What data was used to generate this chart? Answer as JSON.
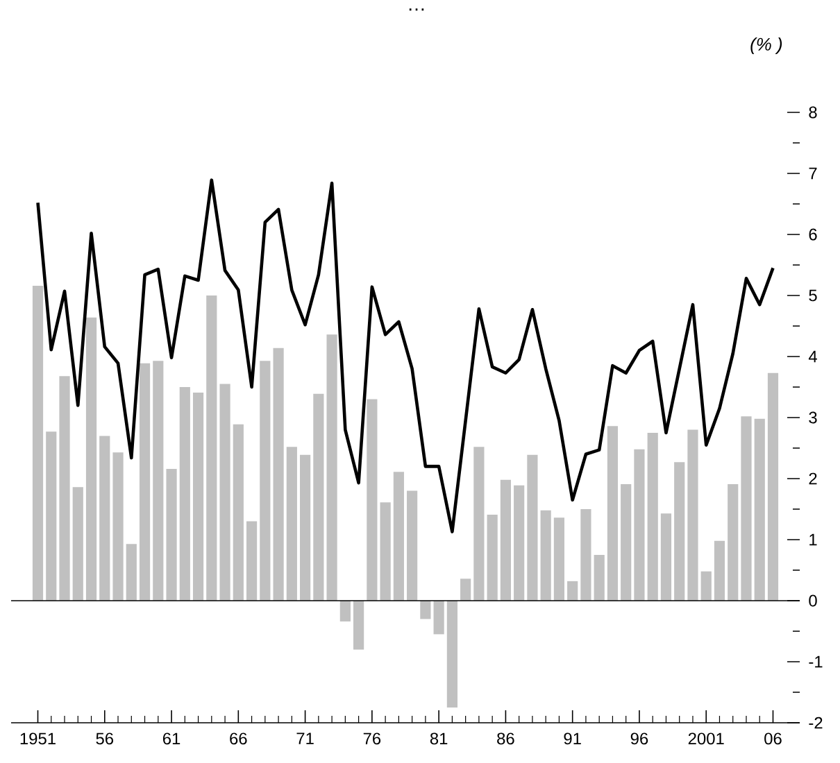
{
  "chart_data": {
    "type": "bar",
    "title": "…",
    "annotations": [
      "(%        )"
    ],
    "categories": [
      "1951",
      null,
      null,
      null,
      null,
      "56",
      null,
      null,
      null,
      null,
      "61",
      null,
      null,
      null,
      null,
      "66",
      null,
      null,
      null,
      null,
      "71",
      null,
      null,
      null,
      null,
      "76",
      null,
      null,
      null,
      null,
      "81",
      null,
      null,
      null,
      null,
      "86",
      null,
      null,
      null,
      null,
      "91",
      null,
      null,
      null,
      null,
      "96",
      null,
      null,
      null,
      null,
      "2001",
      null,
      null,
      null,
      null,
      "06"
    ],
    "series": [
      {
        "color": "#c0c0c0",
        "values": [
          5.16,
          2.77,
          3.68,
          1.86,
          4.64,
          2.7,
          2.43,
          0.93,
          3.89,
          3.93,
          2.16,
          3.5,
          3.41,
          5.0,
          3.55,
          2.89,
          1.3,
          3.93,
          4.14,
          2.52,
          2.39,
          3.39,
          4.36,
          -0.34,
          -0.8,
          3.3,
          1.61,
          2.11,
          1.8,
          -0.3,
          -0.55,
          -1.75,
          0.36,
          2.52,
          1.41,
          1.98,
          1.89,
          2.39,
          1.48,
          1.36,
          0.32,
          1.5,
          0.75,
          2.86,
          1.91,
          2.48,
          2.75,
          1.43,
          2.27,
          2.8,
          0.48,
          0.98,
          1.91,
          3.02,
          2.98,
          3.73
        ]
      },
      {
        "type": "line",
        "color": "#000000",
        "values": [
          6.52,
          4.11,
          5.07,
          3.2,
          6.02,
          4.16,
          3.89,
          2.34,
          5.34,
          5.43,
          3.98,
          5.32,
          5.25,
          6.89,
          5.41,
          5.09,
          3.5,
          6.2,
          6.41,
          5.09,
          4.52,
          5.34,
          6.84,
          2.8,
          1.93,
          5.14,
          4.36,
          4.57,
          3.8,
          2.2,
          2.2,
          1.13,
          2.95,
          4.78,
          3.83,
          3.73,
          3.95,
          4.77,
          3.8,
          2.95,
          1.65,
          2.4,
          2.47,
          3.85,
          3.73,
          4.1,
          4.25,
          2.75,
          3.8,
          4.85,
          2.55,
          3.15,
          4.05,
          5.28,
          4.85,
          5.45
        ]
      }
    ],
    "ylim": [
      -2,
      8
    ],
    "yticks": [
      -2,
      {
        "value": -1.5,
        "label": null
      },
      -1,
      {
        "value": -0.5,
        "label": null
      },
      0,
      {
        "value": 0.5,
        "label": null
      },
      1,
      {
        "value": 1.5,
        "label": null
      },
      2,
      {
        "value": 2.5,
        "label": null
      },
      3,
      {
        "value": 3.5,
        "label": null
      },
      4,
      {
        "value": 4.5,
        "label": null
      },
      5,
      {
        "value": 5.5,
        "label": null
      },
      6,
      {
        "value": 6.5,
        "label": null
      },
      7,
      {
        "value": 7.5,
        "label": null
      },
      8
    ],
    "marker": "none",
    "line_style": "solid"
  }
}
